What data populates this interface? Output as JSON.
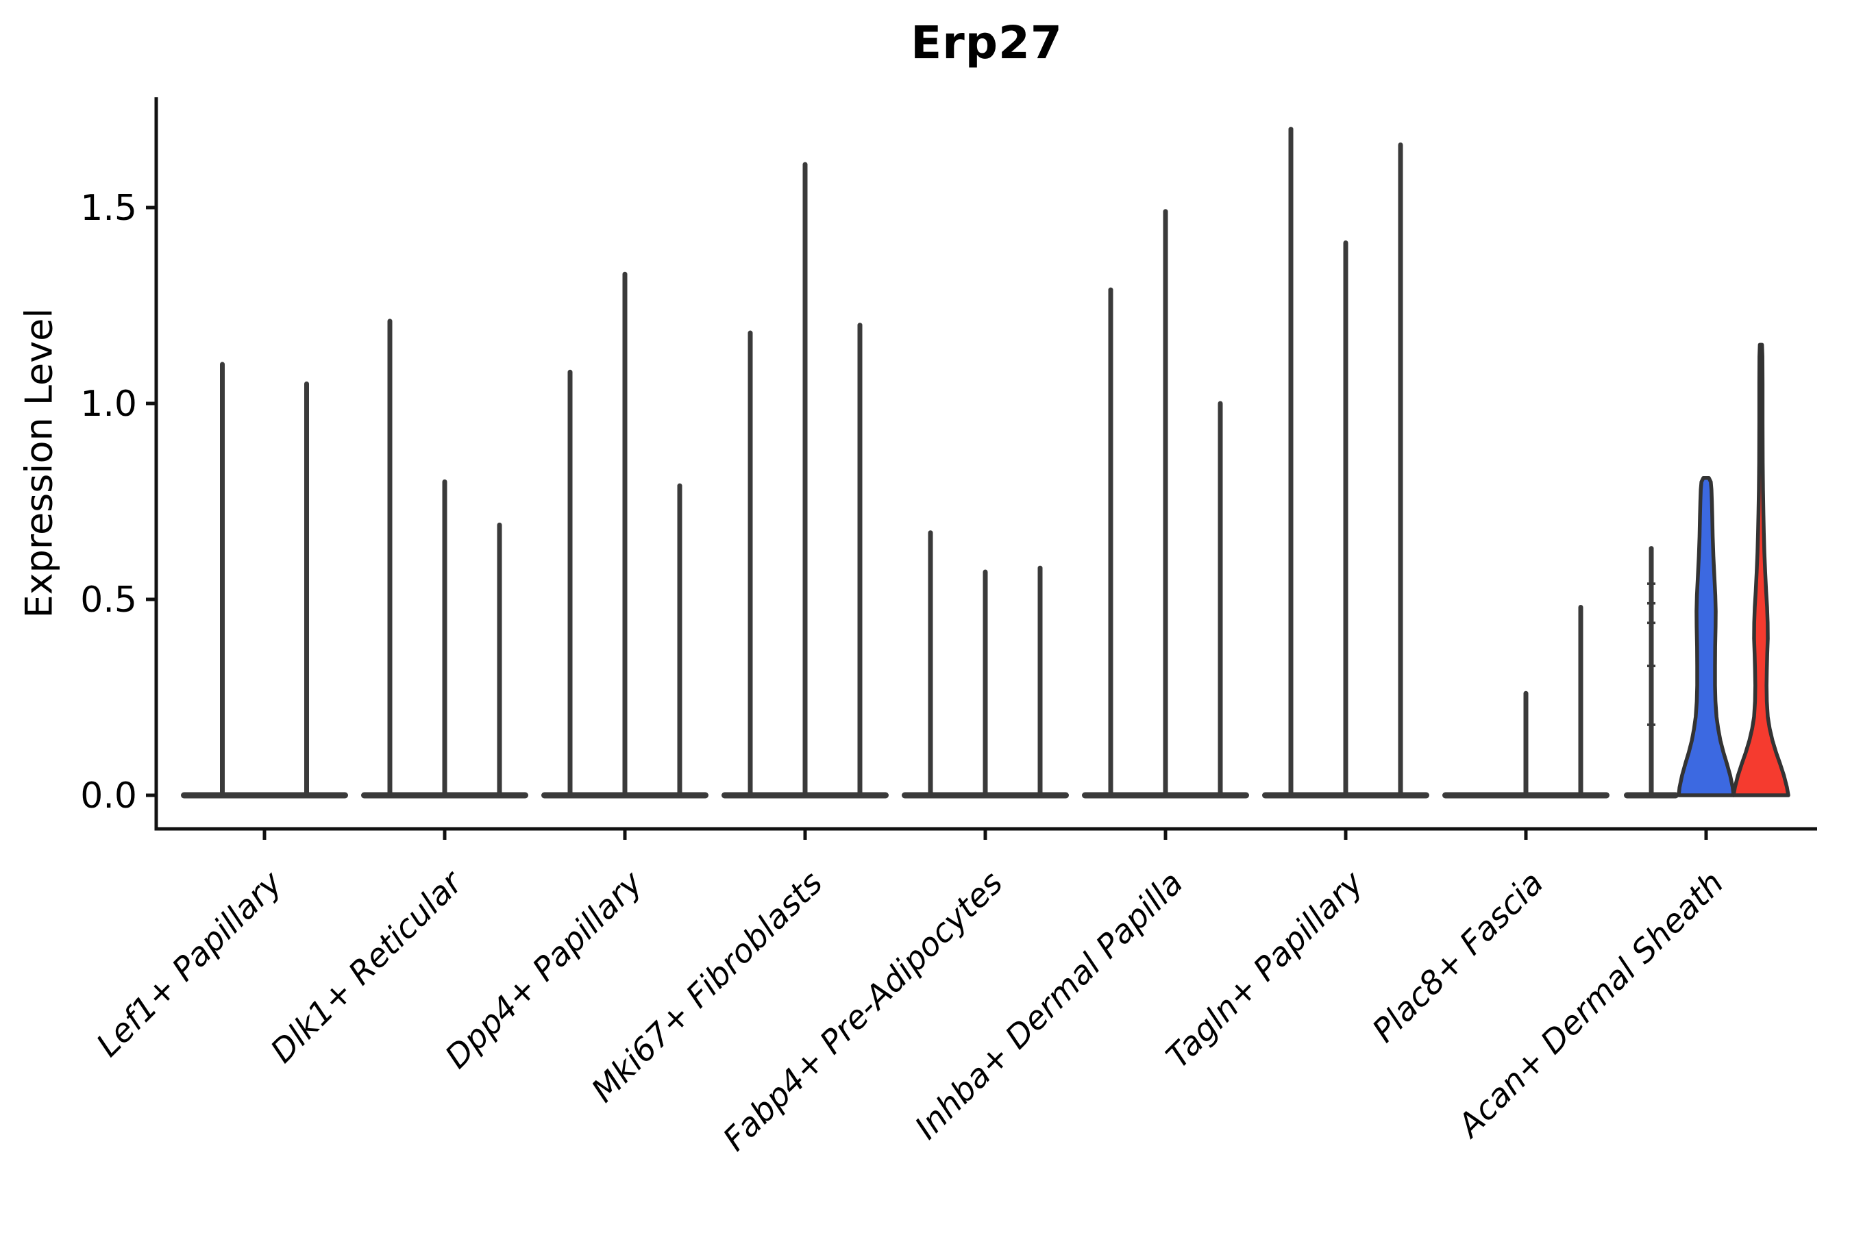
{
  "chart_data": {
    "type": "violin",
    "title": "Erp27",
    "xlabel": "",
    "ylabel": "Expression Level",
    "ylim": [
      -0.09,
      1.78
    ],
    "yticks": [
      0.0,
      0.5,
      1.0,
      1.5
    ],
    "ytick_labels": [
      "0.0",
      "0.5",
      "1.0",
      "1.5"
    ],
    "grid": false,
    "legend_position": "none",
    "categories": [
      "Lef1+ Papillary",
      "Dlk1+ Reticular",
      "Dpp4+ Papillary",
      "Mki67+ Fibroblasts",
      "Fabp4+ Pre-Adipocytes",
      "Inhba+ Dermal Papilla",
      "Tagln+ Papillary",
      "Plac8+ Fascia",
      "Acan+ Dermal Sheath"
    ],
    "groups": [
      {
        "category": "Lef1+ Papillary",
        "violins": [
          {
            "max": 1.1,
            "style": "spike"
          },
          {
            "max": 1.05,
            "style": "spike"
          }
        ]
      },
      {
        "category": "Dlk1+ Reticular",
        "violins": [
          {
            "max": 1.21,
            "style": "spike"
          },
          {
            "max": 0.8,
            "style": "spike"
          },
          {
            "max": 0.69,
            "style": "spike"
          }
        ]
      },
      {
        "category": "Dpp4+ Papillary",
        "violins": [
          {
            "max": 1.08,
            "style": "spike"
          },
          {
            "max": 1.33,
            "style": "spike"
          },
          {
            "max": 0.79,
            "style": "spike"
          }
        ]
      },
      {
        "category": "Mki67+ Fibroblasts",
        "violins": [
          {
            "max": 1.18,
            "style": "spike"
          },
          {
            "max": 1.61,
            "style": "spike"
          },
          {
            "max": 1.2,
            "style": "spike"
          }
        ]
      },
      {
        "category": "Fabp4+ Pre-Adipocytes",
        "violins": [
          {
            "max": 0.67,
            "style": "spike"
          },
          {
            "max": 0.57,
            "style": "spike"
          },
          {
            "max": 0.58,
            "style": "spike"
          }
        ]
      },
      {
        "category": "Inhba+ Dermal Papilla",
        "violins": [
          {
            "max": 1.29,
            "style": "spike"
          },
          {
            "max": 1.49,
            "style": "spike"
          },
          {
            "max": 1.0,
            "style": "spike"
          }
        ]
      },
      {
        "category": "Tagln+ Papillary",
        "violins": [
          {
            "max": 1.7,
            "style": "spike"
          },
          {
            "max": 1.41,
            "style": "spike"
          },
          {
            "max": 1.66,
            "style": "spike"
          }
        ]
      },
      {
        "category": "Plac8+ Fascia",
        "violins": [
          {
            "max": 0.0,
            "style": "spike"
          },
          {
            "max": 0.26,
            "style": "spike"
          },
          {
            "max": 0.48,
            "style": "spike"
          }
        ]
      },
      {
        "category": "Acan+ Dermal Sheath",
        "violins": [
          {
            "max": 0.63,
            "style": "spike",
            "marks": [
              0.54,
              0.49,
              0.44,
              0.33,
              0.18
            ]
          },
          {
            "max": 0.81,
            "style": "filled",
            "fill": "blue",
            "profile": [
              [
                0.0,
                1.0
              ],
              [
                0.02,
                0.97
              ],
              [
                0.05,
                0.88
              ],
              [
                0.08,
                0.76
              ],
              [
                0.11,
                0.63
              ],
              [
                0.14,
                0.52
              ],
              [
                0.17,
                0.44
              ],
              [
                0.2,
                0.38
              ],
              [
                0.24,
                0.34
              ],
              [
                0.28,
                0.325
              ],
              [
                0.33,
                0.325
              ],
              [
                0.38,
                0.33
              ],
              [
                0.43,
                0.345
              ],
              [
                0.47,
                0.35
              ],
              [
                0.51,
                0.335
              ],
              [
                0.56,
                0.3
              ],
              [
                0.61,
                0.265
              ],
              [
                0.66,
                0.24
              ],
              [
                0.71,
                0.225
              ],
              [
                0.75,
                0.21
              ],
              [
                0.78,
                0.195
              ],
              [
                0.8,
                0.17
              ],
              [
                0.81,
                0.1
              ]
            ]
          },
          {
            "max": 1.15,
            "style": "filled",
            "fill": "red",
            "profile": [
              [
                0.0,
                1.0
              ],
              [
                0.02,
                0.95
              ],
              [
                0.05,
                0.84
              ],
              [
                0.08,
                0.7
              ],
              [
                0.11,
                0.55
              ],
              [
                0.14,
                0.42
              ],
              [
                0.17,
                0.32
              ],
              [
                0.2,
                0.25
              ],
              [
                0.24,
                0.215
              ],
              [
                0.28,
                0.205
              ],
              [
                0.32,
                0.215
              ],
              [
                0.36,
                0.23
              ],
              [
                0.4,
                0.25
              ],
              [
                0.44,
                0.245
              ],
              [
                0.48,
                0.225
              ],
              [
                0.52,
                0.19
              ],
              [
                0.57,
                0.155
              ],
              [
                0.62,
                0.125
              ],
              [
                0.67,
                0.105
              ],
              [
                0.72,
                0.09
              ],
              [
                0.78,
                0.075
              ],
              [
                0.85,
                0.065
              ],
              [
                0.95,
                0.06
              ],
              [
                1.05,
                0.06
              ],
              [
                1.12,
                0.055
              ],
              [
                1.15,
                0.04
              ]
            ]
          }
        ]
      }
    ],
    "colors": {
      "blue": "#3C69E1",
      "red": "#F53B2F",
      "violin_outline": "#333333",
      "spike": "#3a3a3a",
      "axis": "#111111",
      "text": "#000000"
    }
  }
}
